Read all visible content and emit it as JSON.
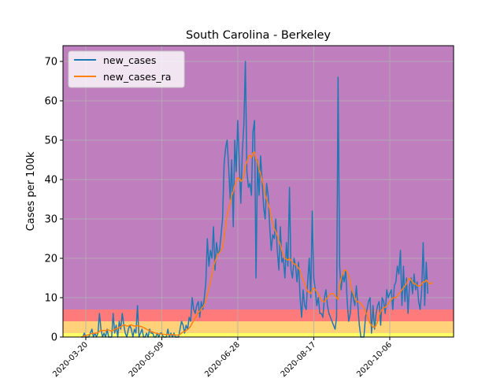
{
  "chart_data": {
    "type": "line",
    "title": "South Carolina - Berkeley",
    "xlabel": "",
    "ylabel": "Cases per 100k",
    "ylim": [
      0,
      74
    ],
    "yticks": [
      0,
      10,
      20,
      30,
      40,
      50,
      60,
      70
    ],
    "xticks": [
      "2020-03-20",
      "2020-05-09",
      "2020-06-28",
      "2020-08-17",
      "2020-10-06"
    ],
    "xlim": [
      "2020-03-05",
      "2020-11-17"
    ],
    "grid": true,
    "legend_position": "top-left",
    "background_bands": [
      {
        "from": 0,
        "to": 1,
        "color": "#ffff66"
      },
      {
        "from": 1,
        "to": 4,
        "color": "#ffd27a"
      },
      {
        "from": 4,
        "to": 7,
        "color": "#ff7b7b"
      },
      {
        "from": 7,
        "to": 74,
        "color": "#bf7fbf"
      }
    ],
    "start_date": "2020-03-17",
    "series": [
      {
        "name": "new_cases",
        "color": "#1f77b4",
        "values": [
          0,
          0,
          1,
          0,
          0,
          0,
          1,
          2,
          0,
          1,
          0,
          1,
          6,
          2,
          0,
          1,
          0,
          2,
          0,
          0,
          0,
          6,
          1,
          3,
          0,
          4,
          2,
          6,
          3,
          1,
          0,
          2,
          3,
          2,
          0,
          2,
          1,
          8,
          0,
          1,
          2,
          0,
          0,
          1,
          0,
          2,
          1,
          1,
          0,
          0,
          1,
          0,
          1,
          1,
          0,
          0,
          0,
          2,
          0,
          1,
          0,
          1,
          0,
          0,
          0,
          2,
          4,
          3,
          1,
          3,
          2,
          5,
          4,
          10,
          7,
          6,
          8,
          9,
          5,
          9,
          7,
          10,
          14,
          25,
          18,
          22,
          20,
          28,
          17,
          24,
          21,
          22,
          26,
          30,
          44,
          48,
          50,
          43,
          35,
          45,
          28,
          50,
          42,
          55,
          44,
          34,
          47,
          54,
          70,
          42,
          38,
          39,
          36,
          52,
          55,
          15,
          45,
          36,
          46,
          40,
          33,
          30,
          39,
          36,
          28,
          22,
          26,
          25,
          30,
          22,
          17,
          28,
          19,
          20,
          15,
          24,
          18,
          38,
          17,
          15,
          20,
          18,
          14,
          19,
          10,
          5,
          12,
          8,
          7,
          14,
          20,
          10,
          32,
          15,
          12,
          8,
          10,
          6,
          6,
          5,
          10,
          12,
          8,
          6,
          5,
          4,
          3,
          2,
          5,
          66,
          18,
          12,
          16,
          14,
          17,
          9,
          4,
          6,
          12,
          10,
          8,
          13,
          8,
          3,
          0,
          0,
          0,
          5,
          7,
          9,
          10,
          1,
          8,
          2,
          6,
          8,
          9,
          3,
          10,
          9,
          6,
          12,
          10,
          11,
          12,
          7,
          13,
          14,
          18,
          16,
          22,
          8,
          18,
          9,
          15,
          6,
          13,
          15,
          11,
          16,
          12,
          14,
          9,
          7,
          12,
          24,
          8,
          19,
          11
        ]
      },
      {
        "name": "new_cases_ra",
        "color": "#ff7f0e",
        "values": [
          0.0,
          0.1,
          0.3,
          0.4,
          0.5,
          0.6,
          0.8,
          0.9,
          0.9,
          1.0,
          1.0,
          1.1,
          1.5,
          1.7,
          1.6,
          1.7,
          1.6,
          1.8,
          1.8,
          1.6,
          1.5,
          1.8,
          1.9,
          2.2,
          2.2,
          2.5,
          2.6,
          2.9,
          3.1,
          3.0,
          2.8,
          2.8,
          3.0,
          3.1,
          2.9,
          2.8,
          2.7,
          3.0,
          2.8,
          2.7,
          2.6,
          2.4,
          2.2,
          2.0,
          1.8,
          1.6,
          1.4,
          1.3,
          1.1,
          1.0,
          0.9,
          0.8,
          0.8,
          0.8,
          0.7,
          0.7,
          0.6,
          0.7,
          0.6,
          0.6,
          0.6,
          0.6,
          0.5,
          0.5,
          0.5,
          0.7,
          1.0,
          1.3,
          1.4,
          1.7,
          1.9,
          2.3,
          2.8,
          3.5,
          4.2,
          4.8,
          5.5,
          6.2,
          6.6,
          7.2,
          7.6,
          8.2,
          9.3,
          11.0,
          12.4,
          14.0,
          15.8,
          17.9,
          19.1,
          20.3,
          21.0,
          21.5,
          22.0,
          22.7,
          25.5,
          28.2,
          31.0,
          32.5,
          34.0,
          36.0,
          37.0,
          38.5,
          39.5,
          40.5,
          40.2,
          39.5,
          40.0,
          41.0,
          43.5,
          44.5,
          45.8,
          46.2,
          45.5,
          46.8,
          47.0,
          45.0,
          44.8,
          42.5,
          41.5,
          40.0,
          38.5,
          36.0,
          35.0,
          33.8,
          32.5,
          30.5,
          29.0,
          27.5,
          26.8,
          25.8,
          24.5,
          23.5,
          22.0,
          21.0,
          20.0,
          19.8,
          19.5,
          20.0,
          19.5,
          19.0,
          18.5,
          18.5,
          18.0,
          17.5,
          16.8,
          15.5,
          14.5,
          13.5,
          12.5,
          11.5,
          11.5,
          11.0,
          12.0,
          12.5,
          12.0,
          11.5,
          11.0,
          10.0,
          9.5,
          9.0,
          9.0,
          9.5,
          10.0,
          10.5,
          11.0,
          11.0,
          11.0,
          10.5,
          10.0,
          9.5,
          13.0,
          15.0,
          16.0,
          17.0,
          17.0,
          16.5,
          15.5,
          14.0,
          12.0,
          11.0,
          10.0,
          9.0,
          9.0,
          8.8,
          8.5,
          8.0,
          7.5,
          6.5,
          5.5,
          4.5,
          3.5,
          3.0,
          2.5,
          2.5,
          3.0,
          4.0,
          5.5,
          6.5,
          7.0,
          7.5,
          7.5,
          8.0,
          8.5,
          9.0,
          9.5,
          10.0,
          10.0,
          10.0,
          10.5,
          11.0,
          11.5,
          12.0,
          12.5,
          13.0,
          13.5,
          14.5,
          15.0,
          14.5,
          14.0,
          13.5,
          13.5,
          13.0,
          13.0,
          13.0,
          13.5,
          14.0,
          14.0,
          14.5,
          14.0,
          13.5,
          13.5,
          14.0
        ]
      }
    ]
  }
}
